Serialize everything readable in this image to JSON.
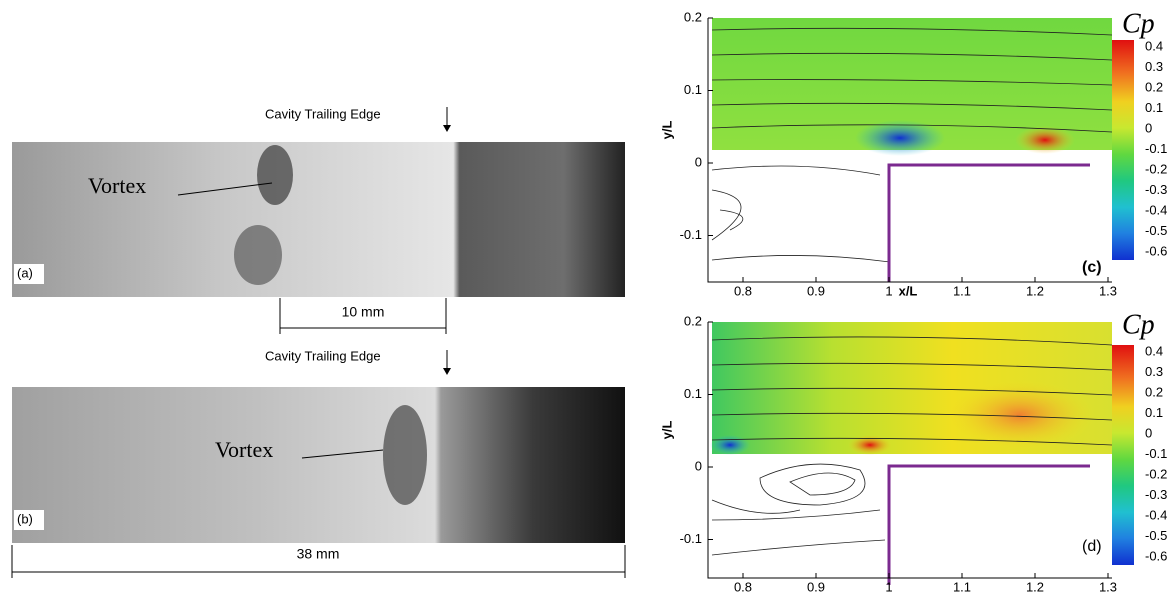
{
  "panels": [
    {
      "label": "(a)",
      "heading": "Cavity Trailing Edge",
      "annotation": "Vortex",
      "scale": "10 mm"
    },
    {
      "label": "(b)",
      "heading": "Cavity Trailing Edge",
      "annotation": "Vortex",
      "scale": "38 mm"
    },
    {
      "label": "(c)",
      "xlabel": "x/L",
      "ylabel": "y/L",
      "colorbar_title": "Cp",
      "xticks": [
        "0.8",
        "0.9",
        "1",
        "1.1",
        "1.2",
        "1.3"
      ],
      "yticks": [
        "0.2",
        "0.1",
        "0",
        "-0.1"
      ],
      "colorbar_ticks": [
        "0.4",
        "0.3",
        "0.2",
        "0.1",
        "0",
        "-0.1",
        "-0.2",
        "-0.3",
        "-0.4",
        "-0.5",
        "-0.6"
      ]
    },
    {
      "label": "(d)",
      "ylabel": "y/L",
      "colorbar_title": "Cp",
      "xticks": [
        "0.8",
        "0.9",
        "1",
        "1.1",
        "1.2",
        "1.3"
      ],
      "yticks": [
        "0.2",
        "0.1",
        "0",
        "-0.1"
      ],
      "colorbar_ticks": [
        "0.4",
        "0.3",
        "0.2",
        "0.1",
        "0",
        "-0.1",
        "-0.2",
        "-0.3",
        "-0.4",
        "-0.5",
        "-0.6"
      ]
    }
  ]
}
